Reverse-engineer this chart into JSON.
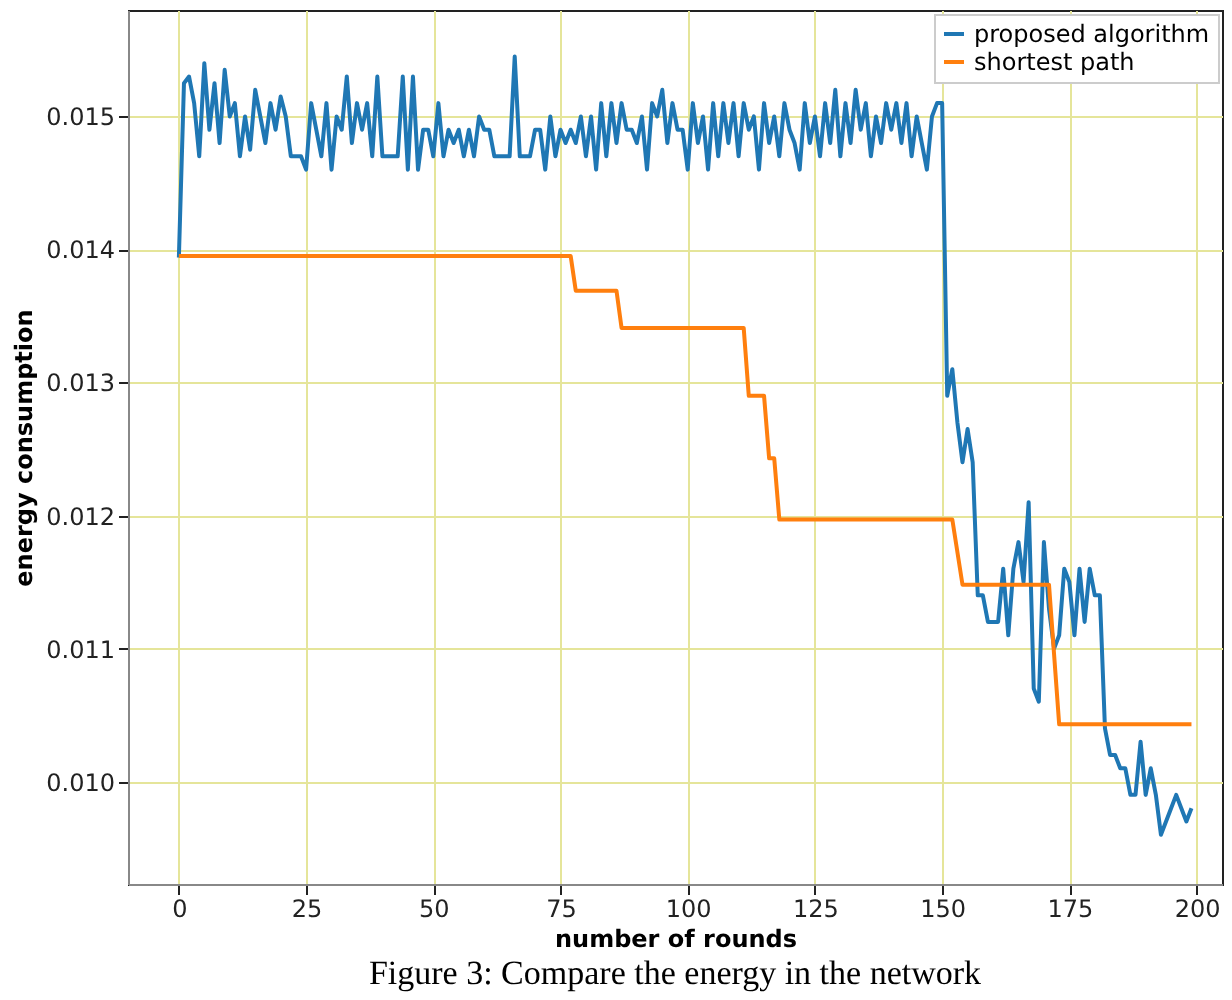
{
  "chart_data": {
    "type": "line",
    "xlabel": "number of rounds",
    "ylabel": "energy consumption",
    "xlim": [
      -10,
      205
    ],
    "ylim": [
      0.00923,
      0.0158
    ],
    "xticks": [
      0,
      25,
      50,
      75,
      100,
      125,
      150,
      175,
      200
    ],
    "yticks": [
      {
        "value": 0.01,
        "label": "0.010"
      },
      {
        "value": 0.011,
        "label": "0.011"
      },
      {
        "value": 0.012,
        "label": "0.012"
      },
      {
        "value": 0.013,
        "label": "0.013"
      },
      {
        "value": 0.014,
        "label": "0.014"
      },
      {
        "value": 0.015,
        "label": "0.015"
      }
    ],
    "grid": true,
    "legend": "top right",
    "marker": "none",
    "line_style": "solid",
    "annotations": [
      "Figure 3: Compare the energy in the network"
    ],
    "series": [
      {
        "name": "proposed algorithm",
        "color": "#1f77b4",
        "x": [
          0,
          1,
          2,
          3,
          4,
          5,
          6,
          7,
          8,
          9,
          10,
          11,
          12,
          13,
          14,
          15,
          16,
          17,
          18,
          19,
          20,
          21,
          22,
          23,
          24,
          25,
          26,
          27,
          28,
          29,
          30,
          31,
          32,
          33,
          34,
          35,
          36,
          37,
          38,
          39,
          40,
          41,
          42,
          43,
          44,
          45,
          46,
          47,
          48,
          49,
          50,
          51,
          52,
          53,
          54,
          55,
          56,
          57,
          58,
          59,
          60,
          61,
          62,
          63,
          64,
          65,
          66,
          67,
          68,
          69,
          70,
          71,
          72,
          73,
          74,
          75,
          76,
          77,
          78,
          79,
          80,
          81,
          82,
          83,
          84,
          85,
          86,
          87,
          88,
          89,
          90,
          91,
          92,
          93,
          94,
          95,
          96,
          97,
          98,
          99,
          100,
          101,
          102,
          103,
          104,
          105,
          106,
          107,
          108,
          109,
          110,
          111,
          112,
          113,
          114,
          115,
          116,
          117,
          118,
          119,
          120,
          121,
          122,
          123,
          124,
          125,
          126,
          127,
          128,
          129,
          130,
          131,
          132,
          133,
          134,
          135,
          136,
          137,
          138,
          139,
          140,
          141,
          142,
          143,
          144,
          145,
          146,
          147,
          148,
          149,
          150,
          151,
          152,
          153,
          154,
          155,
          156,
          157,
          158,
          159,
          160,
          161,
          162,
          163,
          164,
          165,
          166,
          167,
          168,
          169,
          170,
          171,
          172,
          173,
          174,
          175,
          176,
          177,
          178,
          179,
          180,
          181,
          182,
          183,
          184,
          185,
          186,
          187,
          188,
          189,
          190,
          191,
          192,
          193,
          194,
          195,
          196,
          197,
          198,
          199
        ],
        "values": [
          0.01394,
          0.01525,
          0.0153,
          0.0151,
          0.0147,
          0.0154,
          0.0149,
          0.01525,
          0.0148,
          0.01535,
          0.015,
          0.0151,
          0.0147,
          0.015,
          0.01475,
          0.0152,
          0.015,
          0.0148,
          0.0151,
          0.0149,
          0.01515,
          0.015,
          0.0147,
          0.0147,
          0.0147,
          0.0146,
          0.0151,
          0.0149,
          0.0147,
          0.0151,
          0.0146,
          0.015,
          0.0149,
          0.0153,
          0.0148,
          0.0151,
          0.0149,
          0.0151,
          0.0147,
          0.0153,
          0.0147,
          0.0147,
          0.0147,
          0.0147,
          0.0153,
          0.0146,
          0.0153,
          0.0146,
          0.0149,
          0.0149,
          0.0147,
          0.0151,
          0.0147,
          0.0149,
          0.0148,
          0.0149,
          0.0147,
          0.0149,
          0.0147,
          0.015,
          0.0149,
          0.0149,
          0.0147,
          0.0147,
          0.0147,
          0.0147,
          0.01545,
          0.0147,
          0.0147,
          0.0147,
          0.0149,
          0.0149,
          0.0146,
          0.015,
          0.0147,
          0.0149,
          0.0148,
          0.0149,
          0.0148,
          0.015,
          0.0147,
          0.015,
          0.0146,
          0.0151,
          0.0147,
          0.0151,
          0.0148,
          0.0151,
          0.0149,
          0.0149,
          0.0148,
          0.015,
          0.0146,
          0.0151,
          0.015,
          0.0152,
          0.0148,
          0.0151,
          0.0149,
          0.0149,
          0.0146,
          0.0151,
          0.0148,
          0.015,
          0.0146,
          0.0151,
          0.0147,
          0.0151,
          0.0148,
          0.0151,
          0.0147,
          0.0151,
          0.0149,
          0.015,
          0.0146,
          0.0151,
          0.0148,
          0.015,
          0.0147,
          0.0151,
          0.0149,
          0.0148,
          0.0146,
          0.0151,
          0.0148,
          0.015,
          0.0147,
          0.0151,
          0.0148,
          0.0152,
          0.0147,
          0.0151,
          0.0148,
          0.0152,
          0.0149,
          0.0151,
          0.0147,
          0.015,
          0.0148,
          0.0151,
          0.0149,
          0.0151,
          0.0148,
          0.0151,
          0.0147,
          0.015,
          0.0148,
          0.0146,
          0.015,
          0.0151,
          0.0151,
          0.0129,
          0.0131,
          0.0127,
          0.0124,
          0.01265,
          0.0124,
          0.0114,
          0.0114,
          0.0112,
          0.0112,
          0.0112,
          0.0116,
          0.0111,
          0.0116,
          0.0118,
          0.0115,
          0.0121,
          0.0107,
          0.0106,
          0.0118,
          0.0113,
          0.011,
          0.0111,
          0.0116,
          0.0115,
          0.0111,
          0.0116,
          0.0112,
          0.0116,
          0.0114,
          0.0114,
          0.0104,
          0.0102,
          0.0102,
          0.0101,
          0.0101,
          0.0099,
          0.0099,
          0.0103,
          0.0099,
          0.0101,
          0.0099,
          0.0096,
          0.0097,
          0.0098,
          0.0099,
          0.0098,
          0.0097,
          0.0098
        ]
      },
      {
        "name": "shortest path",
        "color": "#ff7f0e",
        "x": [
          0,
          77,
          78,
          86,
          87,
          111,
          112,
          115,
          116,
          117,
          118,
          152,
          154,
          171,
          173,
          199
        ],
        "values": [
          0.01395,
          0.01395,
          0.01369,
          0.01369,
          0.01341,
          0.01341,
          0.0129,
          0.0129,
          0.01243,
          0.01243,
          0.01197,
          0.01197,
          0.01148,
          0.01148,
          0.01043,
          0.01043
        ]
      }
    ]
  }
}
